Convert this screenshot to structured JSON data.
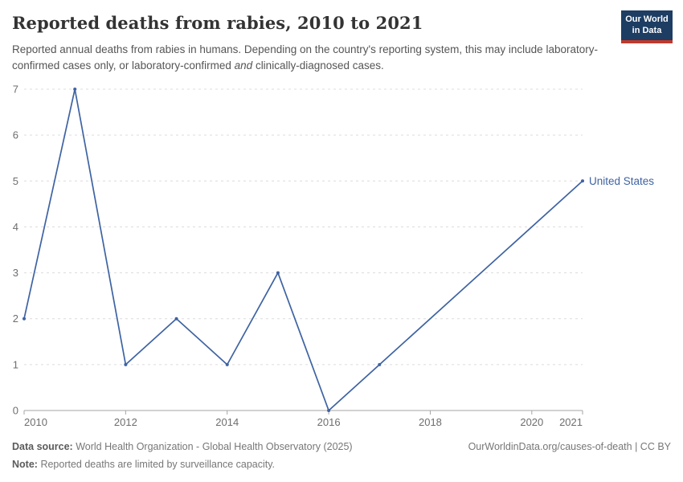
{
  "header": {
    "title": "Reported deaths from rabies, 2010 to 2021",
    "subtitle": {
      "text_before": "Reported annual deaths from rabies in humans. Depending on the country's reporting system, this may include laboratory-confirmed cases only, or laboratory-confirmed",
      "italic_word": "and",
      "text_after": "clinically-diagnosed cases."
    },
    "logo": {
      "line1": "Our World",
      "line2": "in Data",
      "bg_color": "#1d3d63",
      "accent_color": "#c0392b"
    }
  },
  "chart_data": {
    "type": "line",
    "title": "Reported deaths from rabies, 2010 to 2021",
    "xlabel": "",
    "ylabel": "",
    "xlim": [
      2010,
      2021
    ],
    "ylim": [
      0,
      7
    ],
    "x_ticks": [
      2010,
      2012,
      2014,
      2016,
      2018,
      2020,
      2021
    ],
    "y_ticks": [
      0,
      1,
      2,
      3,
      4,
      5,
      6,
      7
    ],
    "grid": "dashed-horizontal",
    "legend_position": "end-of-line-label",
    "series": [
      {
        "name": "United States",
        "color": "#3e63a2",
        "points": [
          {
            "x": 2010,
            "y": 2
          },
          {
            "x": 2011,
            "y": 7
          },
          {
            "x": 2012,
            "y": 1
          },
          {
            "x": 2013,
            "y": 2
          },
          {
            "x": 2014,
            "y": 1
          },
          {
            "x": 2015,
            "y": 3
          },
          {
            "x": 2016,
            "y": 0
          },
          {
            "x": 2017,
            "y": 1
          },
          {
            "x": 2021,
            "y": 5
          }
        ]
      }
    ],
    "colors": {
      "grid": "#dcdcdc",
      "axis": "#a5a5a5",
      "tick_text": "#6e6e6e"
    }
  },
  "footer": {
    "source_label": "Data source:",
    "source_text": "World Health Organization - Global Health Observatory (2025)",
    "note_label": "Note:",
    "note_text": "Reported deaths are limited by surveillance capacity.",
    "attribution": "OurWorldinData.org/causes-of-death | CC BY"
  }
}
